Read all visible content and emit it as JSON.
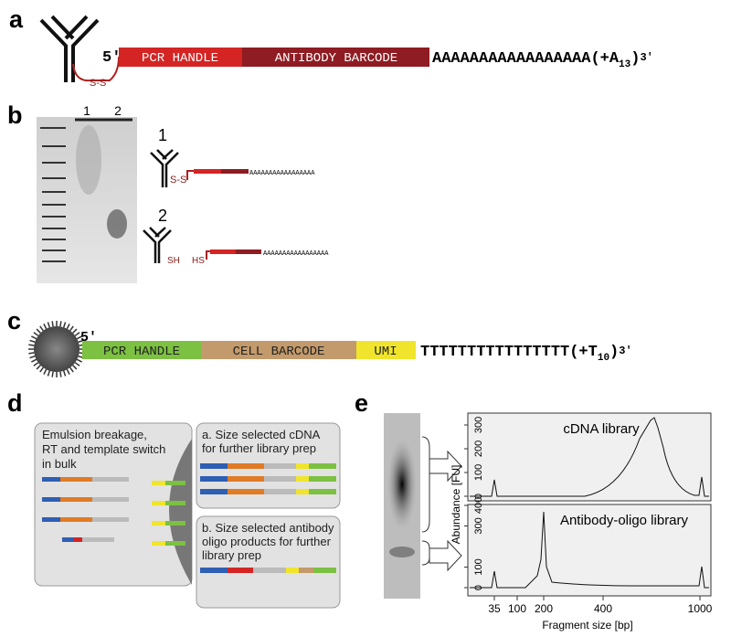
{
  "panel_a": {
    "label": "a",
    "five_prime": "5′",
    "segments": [
      "PCR HANDLE",
      "ANTIBODY BARCODE"
    ],
    "poly": "AAAAAAAAAAAAAAAAA",
    "tail_open": "(+A",
    "tail_sub": "13",
    "tail_close": ")",
    "three_prime": "3′",
    "linker": "S-S"
  },
  "panel_b": {
    "label": "b",
    "lanes": [
      "1",
      "2"
    ],
    "schem1": {
      "label": "1",
      "linker": "S-S",
      "poly": "AAAAAAAAAAAAAAAAA"
    },
    "schem2": {
      "label": "2",
      "sh_left": "SH",
      "sh_right": "HS",
      "poly": "AAAAAAAAAAAAAAAAA"
    }
  },
  "panel_c": {
    "label": "c",
    "five_prime": "5′",
    "segments": [
      "PCR HANDLE",
      "CELL BARCODE",
      "UMI"
    ],
    "poly": "TTTTTTTTTTTTTTTT",
    "tail_open": "(+T",
    "tail_sub": "10",
    "tail_close": ")",
    "three_prime": "3′"
  },
  "panel_d": {
    "label": "d",
    "left_box": [
      "Emulsion breakage,",
      "RT and template switch",
      "in bulk"
    ],
    "box_a": [
      "a. Size selected cDNA",
      "for further library prep"
    ],
    "box_b": [
      "b. Size selected antibody",
      "oligo products for further",
      "library prep"
    ]
  },
  "panel_e": {
    "label": "e",
    "y_label": "Abundance [FU]",
    "x_label": "Fragment size [bp]",
    "top_title": "cDNA library",
    "bottom_title": "Antibody-oligo library",
    "top_yticks": [
      0,
      100,
      200,
      300
    ],
    "bottom_yticks": [
      0,
      100,
      300,
      400
    ],
    "xticks": [
      35,
      100,
      200,
      400,
      1000
    ]
  }
}
